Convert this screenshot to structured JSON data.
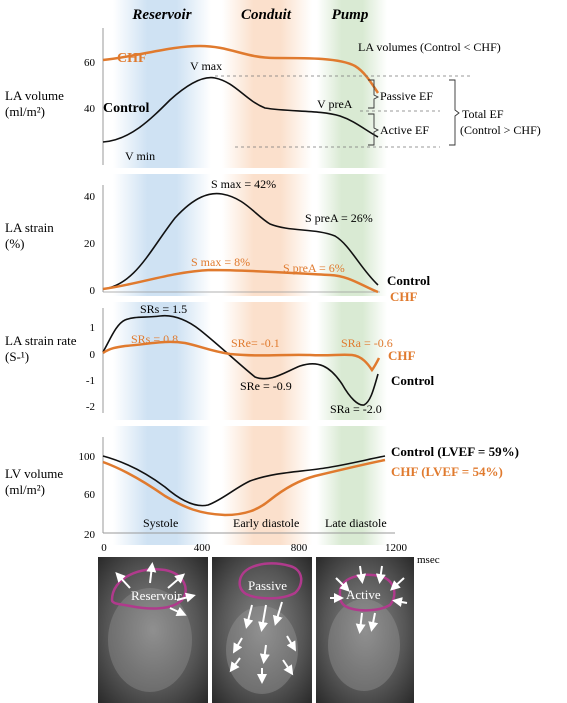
{
  "phases": [
    {
      "label": "Reservoir",
      "color": "#cfe2f3"
    },
    {
      "label": "Conduit",
      "color": "#fbe0cc"
    },
    {
      "label": "Pump",
      "color": "#d9ead3"
    }
  ],
  "colors": {
    "control": "#111111",
    "chf": "#e07a2e",
    "magenta": "#b03a8c"
  },
  "time_axis": {
    "ticks": [
      "0",
      "400",
      "800",
      "1200"
    ],
    "unit": "msec"
  },
  "panels": {
    "la_volume": {
      "ylabel_line1": "LA volume",
      "ylabel_line2": "(ml/m²)",
      "ticks": [
        "60",
        "40"
      ],
      "chf_label": "CHF",
      "control_label": "Control",
      "v_max": "V max",
      "v_min": "V min",
      "v_prea": "V preA",
      "title_note": "LA volumes (Control < CHF)",
      "passive_ef": "Passive EF",
      "active_ef": "Active EF",
      "total_ef_line1": "Total EF",
      "total_ef_line2": "(Control > CHF)"
    },
    "la_strain": {
      "ylabel_line1": "LA strain",
      "ylabel_line2": "(%)",
      "ticks": [
        "40",
        "20",
        "0"
      ],
      "control_smax": "S max = 42%",
      "control_sprea": "S preA = 26%",
      "chf_smax": "S max = 8%",
      "chf_sprea": "S preA = 6%",
      "control_label": "Control",
      "chf_label": "CHF"
    },
    "la_strain_rate": {
      "ylabel_line1": "LA strain rate",
      "ylabel_line2": "(S-¹)",
      "ticks": [
        "1",
        "0",
        "-1",
        "-2"
      ],
      "control_srs": "SRs = 1.5",
      "chf_srs": "SRs = 0.8",
      "chf_sre": "SRe= -0.1",
      "chf_sra": "SRa = -0.6",
      "control_sre": "SRe = -0.9",
      "control_sra": "SRa = -2.0",
      "chf_label": "CHF",
      "control_label": "Control"
    },
    "lv_volume": {
      "ylabel_line1": "LV volume",
      "ylabel_line2": "(ml/m²)",
      "ticks": [
        "100",
        "60",
        "20"
      ],
      "control_label": "Control (LVEF = 59%)",
      "chf_label": "CHF (LVEF = 54%)",
      "systole": "Systole",
      "early_diastole": "Early diastole",
      "late_diastole": "Late diastole"
    }
  },
  "images": [
    {
      "label": "Reservoir"
    },
    {
      "label": "Passive"
    },
    {
      "label": "Active"
    }
  ]
}
